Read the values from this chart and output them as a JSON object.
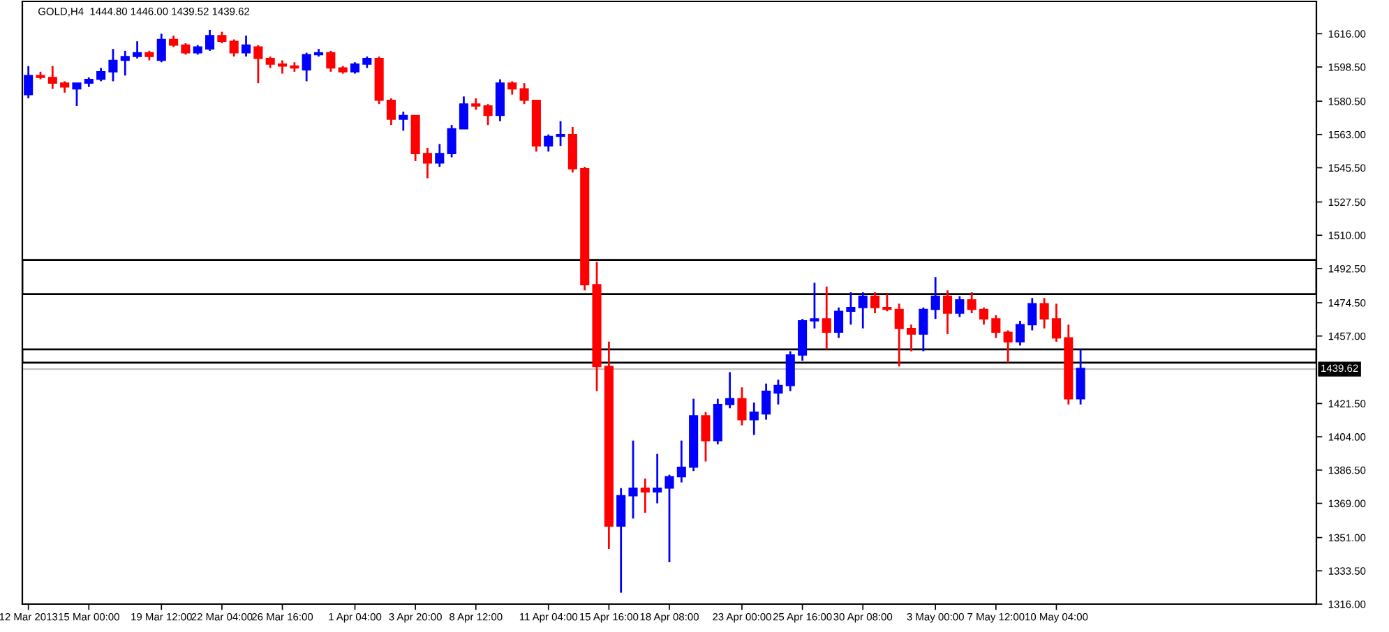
{
  "chart_data": {
    "type": "candlestick",
    "title": "GOLD,H4  1444.80 1446.00 1439.52 1439.62",
    "categories": [
      "12 Mar 2013",
      null,
      null,
      null,
      null,
      "15 Mar 00:00",
      null,
      null,
      null,
      null,
      null,
      "19 Mar 12:00",
      null,
      null,
      null,
      null,
      "22 Mar 04:00",
      null,
      null,
      null,
      null,
      "26 Mar 16:00",
      null,
      null,
      null,
      null,
      null,
      "1 Apr 04:00",
      null,
      null,
      null,
      null,
      "3 Apr 20:00",
      null,
      null,
      null,
      null,
      "8 Apr 12:00",
      null,
      null,
      null,
      null,
      null,
      "11 Apr 04:00",
      null,
      null,
      null,
      null,
      "15 Apr 16:00",
      null,
      null,
      null,
      null,
      "18 Apr 08:00",
      null,
      null,
      null,
      null,
      null,
      "23 Apr 00:00",
      null,
      null,
      null,
      null,
      "25 Apr 16:00",
      null,
      null,
      null,
      null,
      "30 Apr 08:00",
      null,
      null,
      null,
      null,
      null,
      "3 May 00:00",
      null,
      null,
      null,
      null,
      "7 May 12:00",
      null,
      null,
      null,
      null,
      "10 May 04:00",
      null,
      null,
      null,
      null,
      null,
      null,
      null,
      null,
      null,
      null,
      null,
      null,
      null,
      null,
      null,
      null,
      null,
      null,
      null,
      null,
      null
    ],
    "ohlc": [
      [
        1584,
        1599,
        1582,
        1594
      ],
      [
        1594,
        1596,
        1592,
        1593
      ],
      [
        1593,
        1599,
        1587,
        1590
      ],
      [
        1590,
        1591,
        1585,
        1588
      ],
      [
        1587,
        1590,
        1578,
        1590
      ],
      [
        1590,
        1593,
        1588,
        1592
      ],
      [
        1592,
        1598,
        1591,
        1596
      ],
      [
        1596,
        1608,
        1591,
        1602
      ],
      [
        1602,
        1607,
        1594,
        1604
      ],
      [
        1604,
        1612,
        1603,
        1606
      ],
      [
        1606,
        1607,
        1602,
        1604
      ],
      [
        1602,
        1616,
        1601,
        1613
      ],
      [
        1613,
        1615,
        1609,
        1610
      ],
      [
        1610,
        1611,
        1605,
        1606
      ],
      [
        1606,
        1610,
        1605,
        1609
      ],
      [
        1608,
        1618,
        1607,
        1615
      ],
      [
        1615,
        1617,
        1611,
        1612
      ],
      [
        1612,
        1613,
        1604,
        1606
      ],
      [
        1606,
        1615,
        1604,
        1610
      ],
      [
        1609,
        1610,
        1590,
        1603
      ],
      [
        1603,
        1604,
        1598,
        1600
      ],
      [
        1600,
        1602,
        1595,
        1599
      ],
      [
        1599,
        1601,
        1596,
        1598
      ],
      [
        1597,
        1606,
        1591,
        1605
      ],
      [
        1605,
        1608,
        1604,
        1606
      ],
      [
        1606,
        1607,
        1596,
        1598
      ],
      [
        1598,
        1599,
        1595,
        1596
      ],
      [
        1596,
        1601,
        1595,
        1600
      ],
      [
        1600,
        1604,
        1598,
        1603
      ],
      [
        1603,
        1604,
        1579,
        1581
      ],
      [
        1581,
        1582,
        1568,
        1571
      ],
      [
        1571,
        1575,
        1565,
        1573
      ],
      [
        1573,
        1573,
        1549,
        1553
      ],
      [
        1553,
        1556,
        1540,
        1548
      ],
      [
        1548,
        1558,
        1546,
        1553
      ],
      [
        1553,
        1568,
        1551,
        1566
      ],
      [
        1566,
        1583,
        1566,
        1579
      ],
      [
        1579,
        1582,
        1576,
        1578
      ],
      [
        1578,
        1579,
        1568,
        1573
      ],
      [
        1573,
        1592,
        1570,
        1590
      ],
      [
        1590,
        1591,
        1584,
        1587
      ],
      [
        1587,
        1590,
        1579,
        1581
      ],
      [
        1581,
        1581,
        1554,
        1557
      ],
      [
        1557,
        1563,
        1554,
        1562
      ],
      [
        1562,
        1570,
        1557,
        1563
      ],
      [
        1563,
        1567,
        1543,
        1545
      ],
      [
        1545,
        1546,
        1481,
        1484
      ],
      [
        1484,
        1496,
        1428,
        1441
      ],
      [
        1441,
        1454,
        1345,
        1357
      ],
      [
        1357,
        1377,
        1322,
        1373
      ],
      [
        1373,
        1402,
        1361,
        1377
      ],
      [
        1377,
        1382,
        1364,
        1375
      ],
      [
        1375,
        1395,
        1369,
        1377
      ],
      [
        1377,
        1384,
        1338,
        1383
      ],
      [
        1383,
        1402,
        1380,
        1388
      ],
      [
        1388,
        1424,
        1386,
        1415
      ],
      [
        1415,
        1417,
        1391,
        1402
      ],
      [
        1402,
        1424,
        1400,
        1421
      ],
      [
        1421,
        1438,
        1419,
        1424
      ],
      [
        1424,
        1430,
        1410,
        1413
      ],
      [
        1413,
        1422,
        1405,
        1417
      ],
      [
        1416,
        1432,
        1413,
        1428
      ],
      [
        1427,
        1434,
        1421,
        1431
      ],
      [
        1431,
        1449,
        1428,
        1447
      ],
      [
        1447,
        1466,
        1444,
        1465
      ],
      [
        1465,
        1485,
        1461,
        1466
      ],
      [
        1466,
        1483,
        1450,
        1459
      ],
      [
        1459,
        1472,
        1456,
        1470
      ],
      [
        1470,
        1480,
        1463,
        1472
      ],
      [
        1472,
        1480,
        1461,
        1478
      ],
      [
        1478,
        1480,
        1469,
        1472
      ],
      [
        1472,
        1479,
        1470,
        1471
      ],
      [
        1471,
        1474,
        1441,
        1461
      ],
      [
        1461,
        1463,
        1449,
        1458
      ],
      [
        1458,
        1472,
        1449,
        1471
      ],
      [
        1471,
        1488,
        1466,
        1478
      ],
      [
        1478,
        1481,
        1458,
        1469
      ],
      [
        1469,
        1478,
        1467,
        1476
      ],
      [
        1476,
        1480,
        1469,
        1471
      ],
      [
        1471,
        1472,
        1463,
        1466
      ],
      [
        1466,
        1468,
        1456,
        1459
      ],
      [
        1459,
        1460,
        1443,
        1454
      ],
      [
        1454,
        1465,
        1452,
        1463
      ],
      [
        1463,
        1477,
        1460,
        1474
      ],
      [
        1474,
        1477,
        1461,
        1466
      ],
      [
        1466,
        1474,
        1454,
        1456
      ],
      [
        1456,
        1463,
        1421,
        1424
      ],
      [
        1424,
        1450,
        1421,
        1440
      ],
      null,
      null,
      null,
      null,
      null,
      null,
      null,
      null,
      null,
      null,
      null,
      null,
      null,
      null,
      null,
      null,
      null,
      null,
      null
    ],
    "colors": [
      "#0000ff",
      "#ff0000",
      "#ff0000",
      "#ff0000",
      "#0000ff",
      "#0000ff",
      "#0000ff",
      "#0000ff",
      "#0000ff",
      "#0000ff",
      "#ff0000",
      "#0000ff",
      "#ff0000",
      "#ff0000",
      "#0000ff",
      "#0000ff",
      "#ff0000",
      "#ff0000",
      "#0000ff",
      "#ff0000",
      "#ff0000",
      "#ff0000",
      "#ff0000",
      "#0000ff",
      "#0000ff",
      "#ff0000",
      "#ff0000",
      "#0000ff",
      "#0000ff",
      "#ff0000",
      "#ff0000",
      "#0000ff",
      "#ff0000",
      "#ff0000",
      "#0000ff",
      "#0000ff",
      "#0000ff",
      "#ff0000",
      "#ff0000",
      "#0000ff",
      "#ff0000",
      "#ff0000",
      "#ff0000",
      "#0000ff",
      "#0000ff",
      "#ff0000",
      "#ff0000",
      "#ff0000",
      "#ff0000",
      "#0000ff",
      "#0000ff",
      "#ff0000",
      "#0000ff",
      "#0000ff",
      "#0000ff",
      "#0000ff",
      "#ff0000",
      "#0000ff",
      "#0000ff",
      "#ff0000",
      "#0000ff",
      "#0000ff",
      "#0000ff",
      "#0000ff",
      "#0000ff",
      "#0000ff",
      "#ff0000",
      "#0000ff",
      "#0000ff",
      "#0000ff",
      "#ff0000",
      "#ff0000",
      "#ff0000",
      "#ff0000",
      "#0000ff",
      "#0000ff",
      "#ff0000",
      "#0000ff",
      "#ff0000",
      "#ff0000",
      "#ff0000",
      "#ff0000",
      "#0000ff",
      "#0000ff",
      "#ff0000",
      "#ff0000",
      "#ff0000",
      "#0000ff",
      null,
      null,
      null,
      null,
      null,
      null,
      null,
      null,
      null,
      null,
      null,
      null,
      null,
      null,
      null,
      null,
      null,
      null,
      null
    ],
    "ylim": [
      1316,
      1633
    ],
    "yticks": [
      {
        "value": 1616,
        "label": "1616.00"
      },
      {
        "value": 1598.5,
        "label": "1598.50"
      },
      {
        "value": 1580.5,
        "label": "1580.50"
      },
      {
        "value": 1563,
        "label": "1563.00"
      },
      {
        "value": 1545.5,
        "label": "1545.50"
      },
      {
        "value": 1527.5,
        "label": "1527.50"
      },
      {
        "value": 1510,
        "label": "1510.00"
      },
      {
        "value": 1492.5,
        "label": "1492.50"
      },
      {
        "value": 1474.5,
        "label": "1474.50"
      },
      {
        "value": 1457,
        "label": "1457.00"
      },
      {
        "value": 1421.5,
        "label": "1421.50"
      },
      {
        "value": 1404,
        "label": "1404.00"
      },
      {
        "value": 1386.5,
        "label": "1386.50"
      },
      {
        "value": 1369,
        "label": "1369.00"
      },
      {
        "value": 1351,
        "label": "1351.00"
      },
      {
        "value": 1333.5,
        "label": "1333.50"
      },
      {
        "value": 1316,
        "label": "1316.00"
      }
    ],
    "ref_lines": [
      {
        "axis": "y",
        "value": 1439.62,
        "label": "1439.62",
        "color": "#c0c0c0"
      }
    ],
    "bands": [
      {
        "axis": "y",
        "from": 1479,
        "to": 1497,
        "color": "#000000"
      },
      {
        "axis": "y",
        "from": 1443,
        "to": 1450,
        "color": "#000000"
      }
    ]
  }
}
